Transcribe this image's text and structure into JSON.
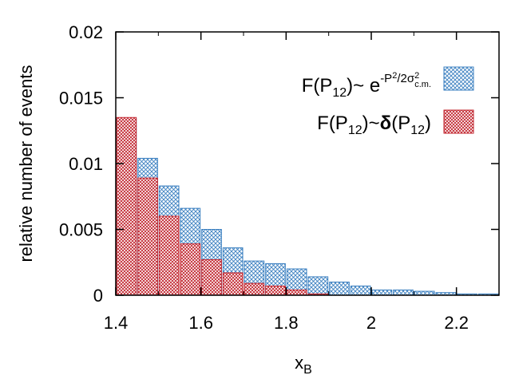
{
  "chart_data": {
    "type": "bar",
    "title": "",
    "xlabel": "x",
    "xlabel_sub": "B",
    "ylabel": "relative number of events",
    "xlim": [
      1.4,
      2.3
    ],
    "ylim": [
      0,
      0.02
    ],
    "bin_width": 0.05,
    "x_ticks": [
      "1.4",
      "1.6",
      "1.8",
      "2",
      "2.2"
    ],
    "x_tick_values": [
      1.4,
      1.6,
      1.8,
      2.0,
      2.2
    ],
    "y_ticks": [
      "0",
      "0.005",
      "0.01",
      "0.015",
      "0.02"
    ],
    "y_tick_values": [
      0,
      0.005,
      0.01,
      0.015,
      0.02
    ],
    "legend_position": "top-right",
    "grid": false,
    "bins_start": [
      1.4,
      1.45,
      1.5,
      1.55,
      1.6,
      1.65,
      1.7,
      1.75,
      1.8,
      1.85,
      1.9,
      1.95,
      2.0,
      2.05,
      2.1,
      2.15,
      2.2,
      2.25
    ],
    "series": [
      {
        "legend": {
          "lhs": "F(P",
          "lhs_sub": "12",
          "mid": ")~ e",
          "exp_a": "-P",
          "exp_a_sup": "2",
          "exp_b": "/2σ",
          "exp_b_sup": "2",
          "exp_b_sub": "c.m."
        },
        "color": "#3a7fc0",
        "pattern": "blue-crosshatch",
        "values": [
          0.0134,
          0.0104,
          0.0083,
          0.0066,
          0.005,
          0.0036,
          0.0026,
          0.0024,
          0.002,
          0.0014,
          0.001,
          0.0007,
          0.0004,
          0.0004,
          0.0003,
          0.0002,
          0.0001,
          0.0001
        ]
      },
      {
        "legend": {
          "lhs": "F(P",
          "lhs_sub": "12",
          "mid": ")~",
          "delta": "δ",
          "rhs": "(P",
          "rhs_sub": "12",
          "close": ")"
        },
        "color": "#c0202a",
        "pattern": "red-crosshatch",
        "values": [
          0.0135,
          0.0089,
          0.006,
          0.0039,
          0.0027,
          0.0017,
          0.0009,
          0.0007,
          0.0004,
          0.0001,
          0,
          0,
          0,
          0,
          0,
          0,
          0,
          0
        ]
      }
    ]
  }
}
